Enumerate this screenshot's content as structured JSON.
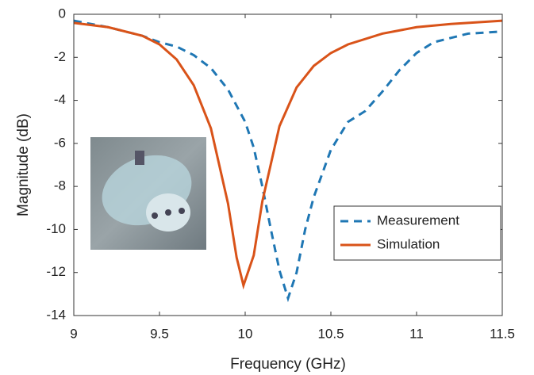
{
  "chart_data": {
    "type": "line",
    "xlabel": "Frequency (GHz)",
    "ylabel": "Magnitude (dB)",
    "xlim": [
      9,
      11.5
    ],
    "xticks": [
      9,
      9.5,
      10,
      10.5,
      11,
      11.5
    ],
    "ylim": [
      -14,
      0
    ],
    "yticks": [
      0,
      -2,
      -4,
      -6,
      -8,
      -10,
      -12,
      -14
    ],
    "legend": "lower right",
    "series": [
      {
        "name": "Measurement",
        "color": "#1f77b4",
        "linestyle": "dashed",
        "x": [
          9.0,
          9.2,
          9.4,
          9.5,
          9.6,
          9.7,
          9.8,
          9.9,
          10.0,
          10.05,
          10.1,
          10.15,
          10.2,
          10.25,
          10.3,
          10.35,
          10.4,
          10.5,
          10.6,
          10.7,
          10.8,
          10.9,
          11.0,
          11.1,
          11.3,
          11.5
        ],
        "values": [
          -0.3,
          -0.6,
          -1.0,
          -1.3,
          -1.5,
          -1.9,
          -2.5,
          -3.5,
          -5.0,
          -6.2,
          -8.0,
          -10.0,
          -11.9,
          -13.2,
          -12.0,
          -10.0,
          -8.5,
          -6.3,
          -5.0,
          -4.5,
          -3.6,
          -2.6,
          -1.8,
          -1.3,
          -0.9,
          -0.8
        ]
      },
      {
        "name": "Simulation",
        "color": "#d95319",
        "linestyle": "solid",
        "x": [
          9.0,
          9.2,
          9.4,
          9.5,
          9.6,
          9.7,
          9.8,
          9.9,
          9.95,
          9.99,
          10.05,
          10.1,
          10.2,
          10.3,
          10.4,
          10.5,
          10.6,
          10.8,
          11.0,
          11.2,
          11.5
        ],
        "values": [
          -0.4,
          -0.6,
          -1.0,
          -1.4,
          -2.1,
          -3.3,
          -5.3,
          -8.8,
          -11.3,
          -12.6,
          -11.2,
          -8.7,
          -5.2,
          -3.4,
          -2.4,
          -1.8,
          -1.4,
          -0.9,
          -0.6,
          -0.45,
          -0.3
        ]
      }
    ]
  }
}
